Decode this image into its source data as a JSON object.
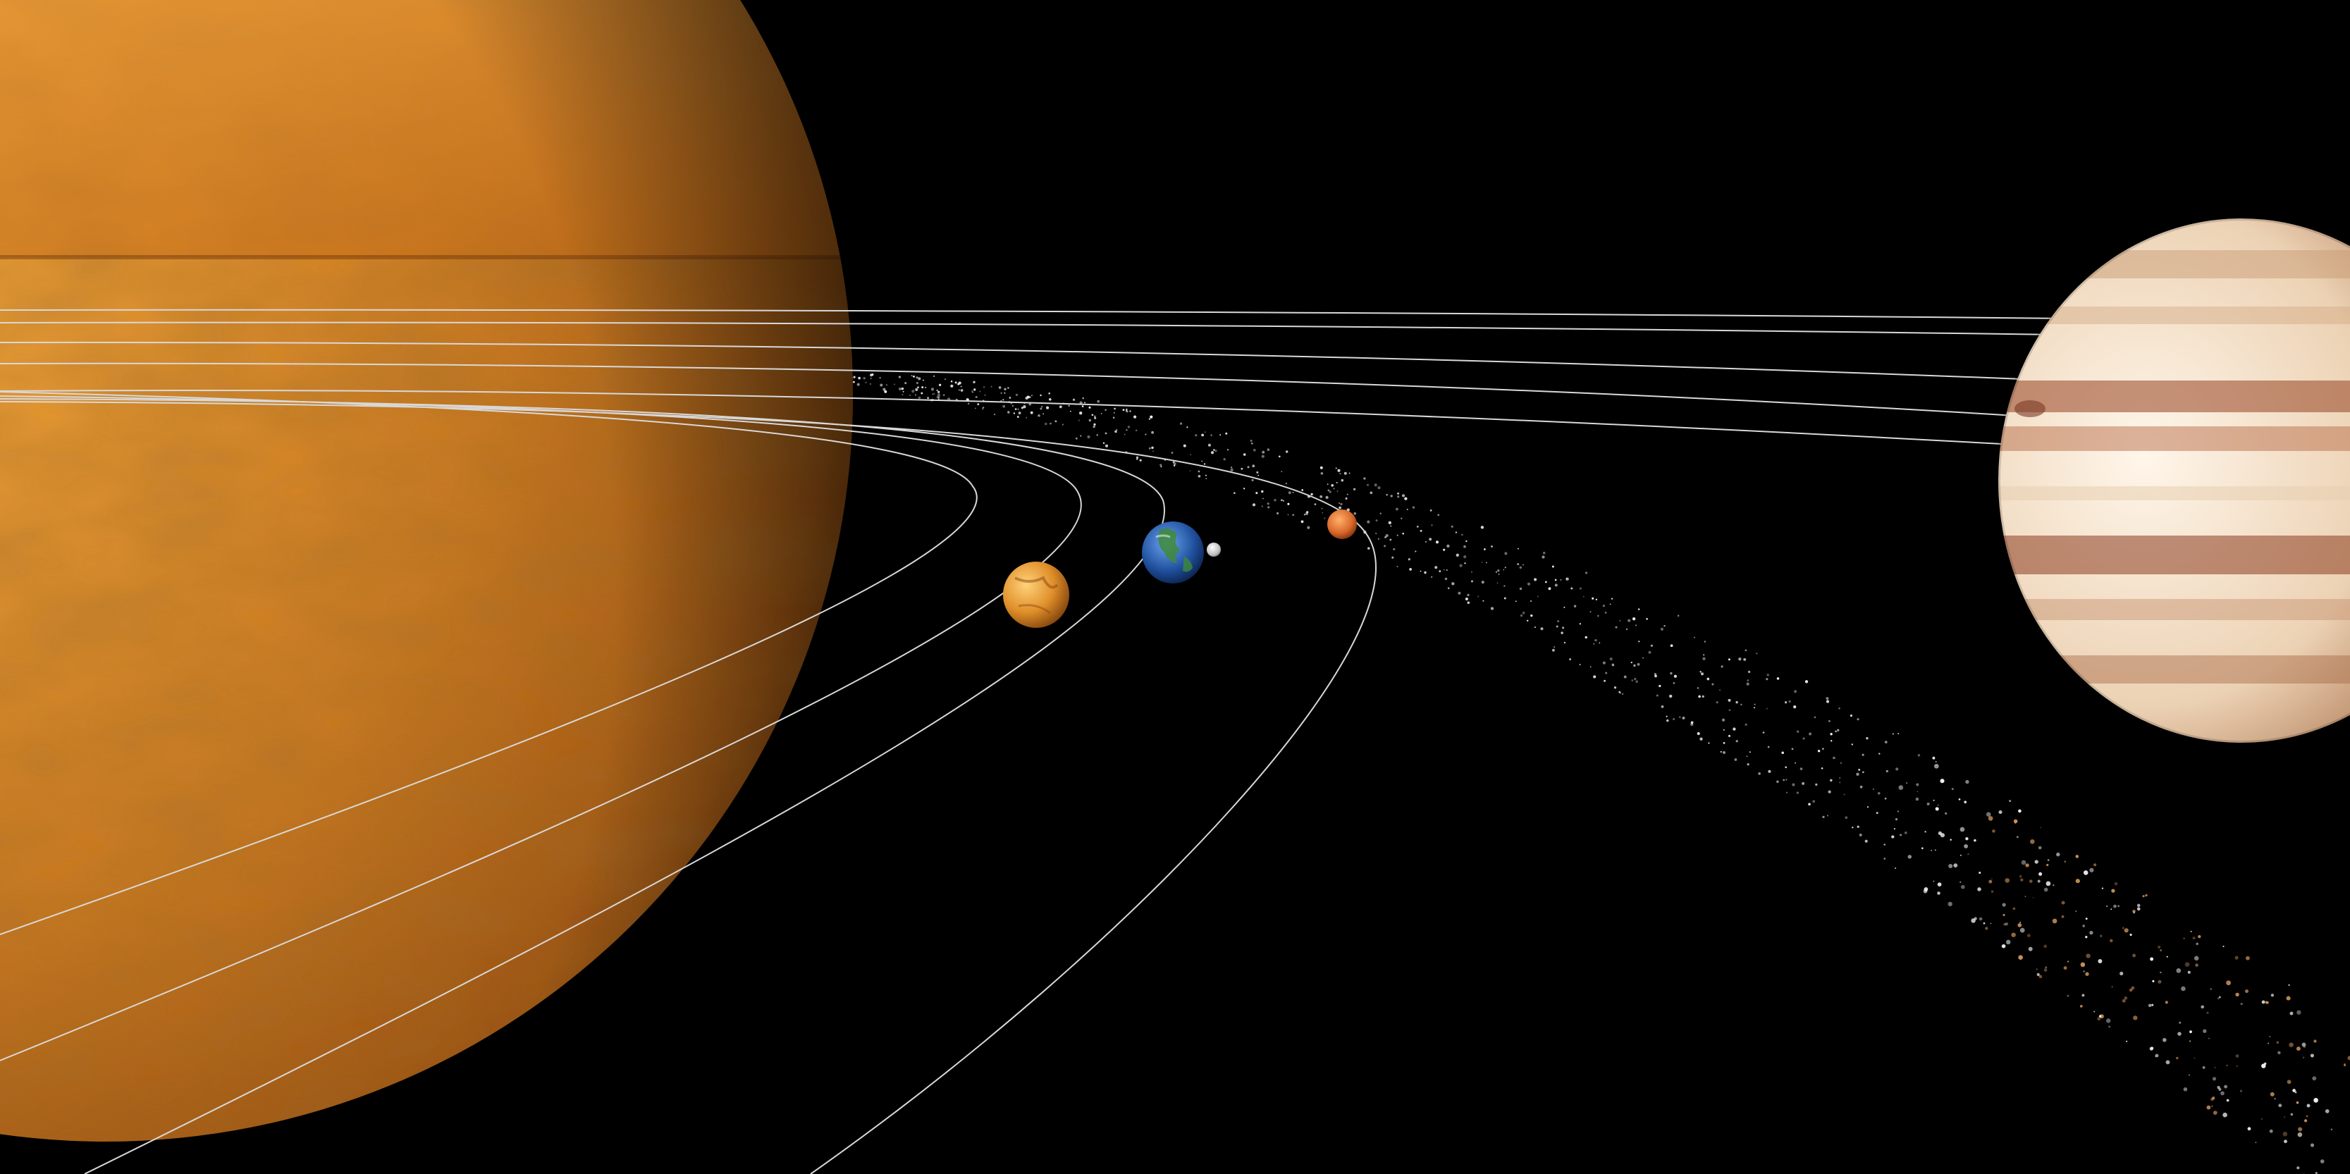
{
  "scene": {
    "background_color": "#000000",
    "orbit_color": "#d8d8d8",
    "bodies": [
      {
        "id": "sun",
        "icon": "sun-icon",
        "colors": [
          "#f0a43a",
          "#b8641a",
          "#6a3208"
        ]
      },
      {
        "id": "venus",
        "icon": "venus-icon",
        "colors": [
          "#ffd27a",
          "#d98c2a",
          "#7a3d0a"
        ]
      },
      {
        "id": "earth",
        "icon": "earth-icon",
        "colors": [
          "#7fb4ff",
          "#1f4f9c",
          "#0a1f44"
        ]
      },
      {
        "id": "moon",
        "icon": "moon-icon",
        "colors": [
          "#ffffff",
          "#c8c8c8",
          "#6e6e6e"
        ]
      },
      {
        "id": "mars",
        "icon": "mars-icon",
        "colors": [
          "#ffb06a",
          "#d8682a",
          "#7a2a08"
        ]
      },
      {
        "id": "jupiter",
        "icon": "jupiter-icon",
        "colors": [
          "#fff4e4",
          "#e6c8a8",
          "#8a4a2a"
        ]
      }
    ],
    "asteroid_belt": {
      "icon": "asteroid-belt-icon",
      "color": "#ffffff"
    }
  }
}
